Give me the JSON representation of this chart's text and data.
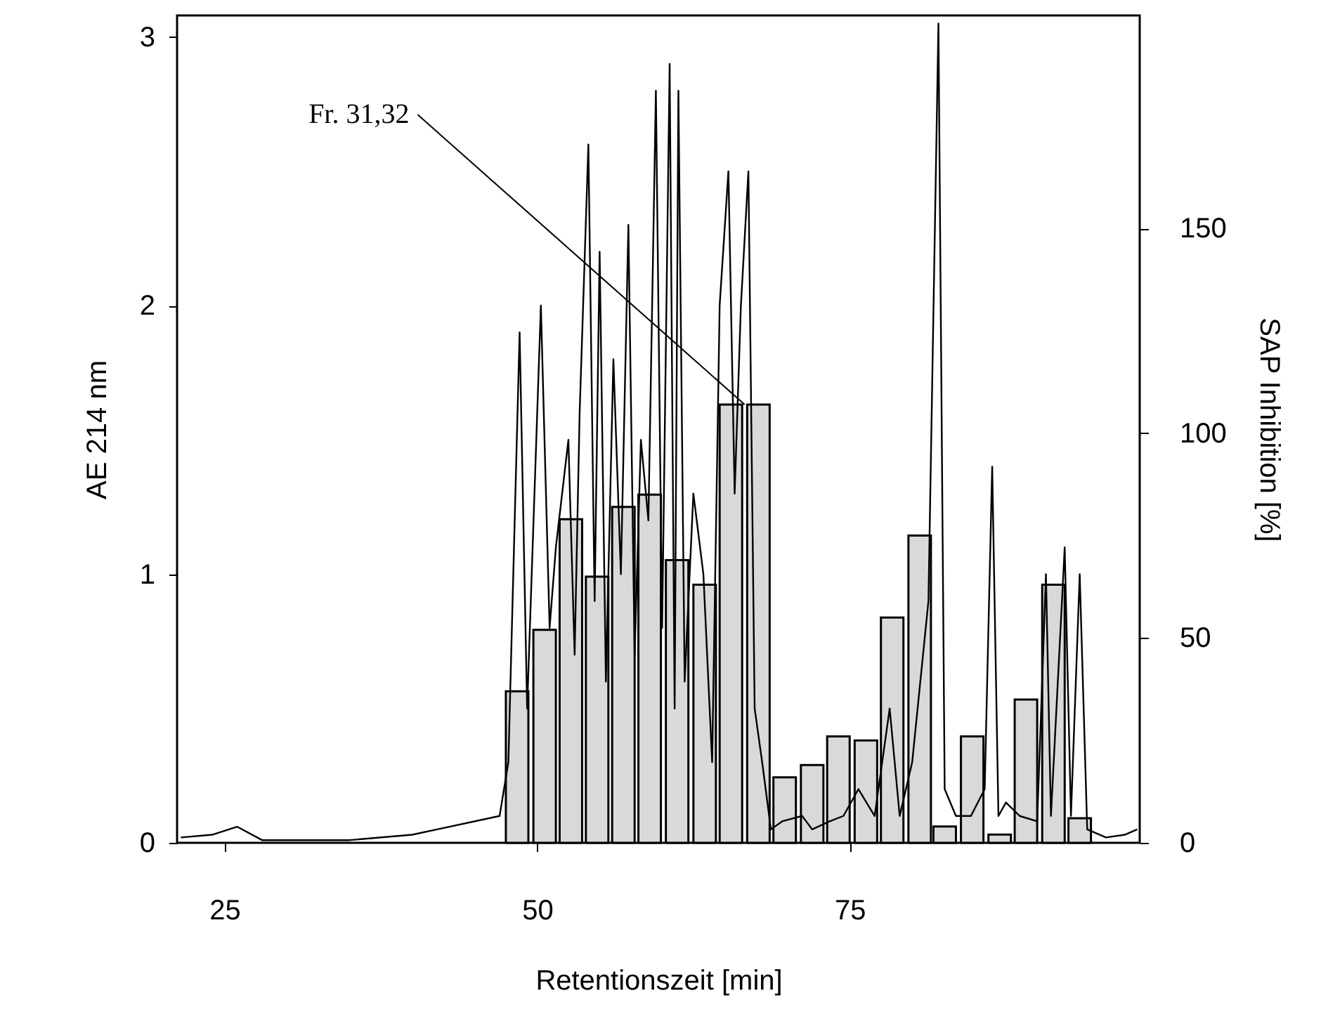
{
  "chart_data": {
    "type": "bar",
    "xlabel": "Retentionszeit [min]",
    "ylabel": "AE 214 nm",
    "y2label": "SAP Inhibition [%]",
    "xlim": [
      21.2,
      98.2
    ],
    "xticks": [
      25,
      50,
      75
    ],
    "ylim": [
      0,
      3.08
    ],
    "yticks": [
      0,
      1,
      2,
      3
    ],
    "y2lim": [
      0,
      202
    ],
    "y2ticks": [
      0,
      50,
      100,
      150
    ],
    "grid": false,
    "marker": "none",
    "line_style": "solid",
    "annotations": [
      "Fr. 31,32"
    ],
    "series": [
      {
        "axis": "y2",
        "color": "#d9d9d9",
        "x": [
          48.4,
          50.6,
          52.7,
          54.8,
          56.9,
          59.0,
          61.2,
          63.4,
          65.5,
          67.7,
          69.8,
          72.0,
          74.1,
          76.3,
          78.4,
          80.6,
          82.6,
          84.8,
          87.0,
          89.1,
          91.3,
          93.4
        ],
        "values": [
          37,
          52,
          79,
          65,
          82,
          85,
          69,
          63,
          107,
          107,
          16,
          19,
          26,
          25,
          55,
          75,
          4,
          26,
          2,
          35,
          63,
          6
        ]
      },
      {
        "type": "line",
        "axis": "y",
        "color": "#000000",
        "x": [
          21.5,
          24,
          26,
          28,
          35,
          40,
          42,
          47.0,
          47.7,
          48.6,
          49.2,
          50.3,
          51.0,
          51.5,
          52.5,
          53.0,
          53.4,
          54.1,
          54.6,
          55.0,
          55.5,
          56.1,
          56.7,
          57.3,
          57.8,
          58.3,
          58.9,
          59.5,
          60.0,
          60.6,
          61.0,
          61.3,
          61.8,
          62.5,
          63.3,
          64.0,
          64.6,
          65.3,
          65.8,
          66.3,
          66.9,
          67.4,
          68.0,
          68.7,
          69.6,
          71.2,
          72.0,
          73.4,
          74.5,
          75.7,
          77.0,
          78.2,
          79.0,
          80.0,
          81.3,
          82.1,
          82.6,
          83.5,
          84.7,
          85.8,
          86.4,
          86.9,
          87.5,
          88.6,
          90.0,
          90.7,
          91.1,
          92.2,
          92.7,
          93.4,
          94.0,
          95.5,
          97.0,
          98.0
        ],
        "values": [
          0.02,
          0.03,
          0.06,
          0.01,
          0.01,
          0.03,
          0.05,
          0.1,
          0.3,
          1.9,
          0.5,
          2.0,
          0.8,
          1.1,
          1.5,
          0.7,
          1.6,
          2.6,
          0.9,
          2.2,
          0.6,
          1.8,
          1.0,
          2.3,
          0.7,
          1.5,
          1.2,
          2.8,
          0.8,
          2.9,
          0.5,
          2.8,
          0.6,
          1.3,
          1.0,
          0.3,
          2.0,
          2.5,
          1.3,
          2.0,
          2.5,
          0.5,
          0.3,
          0.05,
          0.08,
          0.1,
          0.05,
          0.08,
          0.1,
          0.2,
          0.1,
          0.5,
          0.1,
          0.3,
          0.9,
          3.05,
          0.2,
          0.1,
          0.1,
          0.2,
          1.4,
          0.1,
          0.15,
          0.1,
          0.08,
          1.0,
          0.1,
          1.1,
          0.1,
          1.0,
          0.05,
          0.02,
          0.03,
          0.05
        ]
      }
    ]
  }
}
